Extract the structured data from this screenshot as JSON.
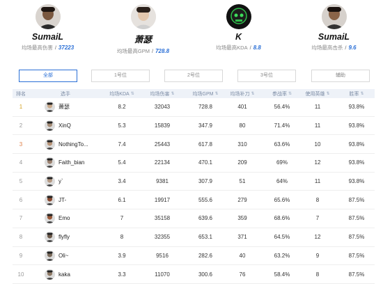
{
  "leaders": [
    {
      "name": "SumaiL",
      "stat_label": "均场最高伤害",
      "value": "37223"
    },
    {
      "name": "萧瑟",
      "stat_label": "均场最高GPM",
      "value": "728.8"
    },
    {
      "name": "K",
      "stat_label": "均场最高KDA",
      "value": "8.8"
    },
    {
      "name": "SumaiL",
      "stat_label": "均场最高击杀",
      "value": "9.6"
    }
  ],
  "tabs": [
    {
      "label": "全部",
      "active": true
    },
    {
      "label": "1号位",
      "active": false
    },
    {
      "label": "2号位",
      "active": false
    },
    {
      "label": "3号位",
      "active": false
    },
    {
      "label": "辅助",
      "active": false
    }
  ],
  "columns": {
    "rank": "排名",
    "player": "选手",
    "kda": "均场KDA",
    "damage": "均场伤害",
    "gpm": "均场GPM",
    "last_hits": "均场补刀",
    "kp": "参战率",
    "games": "使用英雄",
    "winrate": "胜率"
  },
  "rows": [
    {
      "rank": "1",
      "name": "萧瑟",
      "kda": "8.2",
      "damage": "32043",
      "gpm": "728.8",
      "last_hits": "401",
      "kp": "56.4%",
      "games": "11",
      "winrate": "93.8%",
      "rank_style": "gold",
      "avatar_color": "#c9a98a"
    },
    {
      "rank": "2",
      "name": "XinQ",
      "kda": "5.3",
      "damage": "15839",
      "gpm": "347.9",
      "last_hits": "80",
      "kp": "71.4%",
      "games": "11",
      "winrate": "93.8%",
      "rank_style": "plain",
      "avatar_color": "#a38b75"
    },
    {
      "rank": "3",
      "name": "NothingTo...",
      "kda": "7.4",
      "damage": "25443",
      "gpm": "617.8",
      "last_hits": "310",
      "kp": "63.6%",
      "games": "10",
      "winrate": "93.8%",
      "rank_style": "orange",
      "avatar_color": "#b89478"
    },
    {
      "rank": "4",
      "name": "Faith_bian",
      "kda": "5.4",
      "damage": "22134",
      "gpm": "470.1",
      "last_hits": "209",
      "kp": "69%",
      "games": "12",
      "winrate": "93.8%",
      "rank_style": "plain",
      "avatar_color": "#9c8270"
    },
    {
      "rank": "5",
      "name": "y`",
      "kda": "3.4",
      "damage": "9381",
      "gpm": "307.9",
      "last_hits": "51",
      "kp": "64%",
      "games": "11",
      "winrate": "93.8%",
      "rank_style": "plain",
      "avatar_color": "#b59a84"
    },
    {
      "rank": "6",
      "name": "JT-",
      "kda": "6.1",
      "damage": "19917",
      "gpm": "555.6",
      "last_hits": "279",
      "kp": "65.6%",
      "games": "8",
      "winrate": "87.5%",
      "rank_style": "plain",
      "avatar_color": "#8a4a30"
    },
    {
      "rank": "7",
      "name": "Emo",
      "kda": "7",
      "damage": "35158",
      "gpm": "639.6",
      "last_hits": "359",
      "kp": "68.6%",
      "games": "7",
      "winrate": "87.5%",
      "rank_style": "plain",
      "avatar_color": "#9b5a3a"
    },
    {
      "rank": "8",
      "name": "flyfly",
      "kda": "8",
      "damage": "32355",
      "gpm": "653.1",
      "last_hits": "371",
      "kp": "64.5%",
      "games": "12",
      "winrate": "87.5%",
      "rank_style": "plain",
      "avatar_color": "#6c5a4a"
    },
    {
      "rank": "9",
      "name": "Oli~",
      "kda": "3.9",
      "damage": "9516",
      "gpm": "282.6",
      "last_hits": "40",
      "kp": "63.2%",
      "games": "9",
      "winrate": "87.5%",
      "rank_style": "plain",
      "avatar_color": "#7a6a5a"
    },
    {
      "rank": "10",
      "name": "kaka",
      "kda": "3.3",
      "damage": "11070",
      "gpm": "300.6",
      "last_hits": "76",
      "kp": "58.4%",
      "games": "8",
      "winrate": "87.5%",
      "rank_style": "plain",
      "avatar_color": "#8f7a66"
    }
  ]
}
